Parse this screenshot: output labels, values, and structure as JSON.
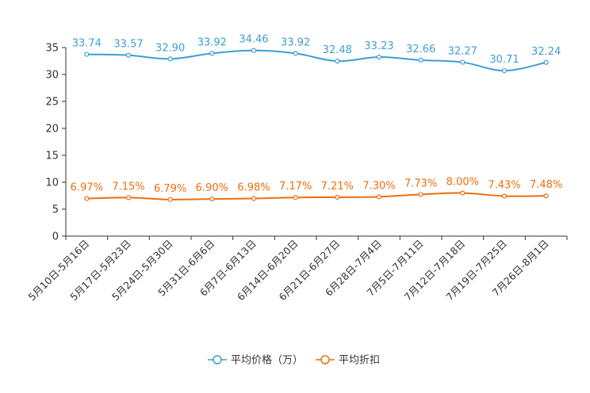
{
  "chart_data": {
    "type": "line",
    "title": "",
    "xlabel": "",
    "ylabel": "",
    "ylim": [
      0,
      35
    ],
    "yticks": [
      0,
      5,
      10,
      15,
      20,
      25,
      30,
      35
    ],
    "grid": false,
    "legend_position": "bottom-center",
    "categories": [
      "5月10日-5月16日",
      "5月17日-5月23日",
      "5月24日-5月30日",
      "5月31日-6月6日",
      "6月7日-6月13日",
      "6月14日-6月20日",
      "6月21日-6月27日",
      "6月28日-7月4日",
      "7月5日-7月11日",
      "7月12日-7月18日",
      "7月19日-7月25日",
      "7月26日-8月1日"
    ],
    "series": [
      {
        "name": "平均价格（万）",
        "color": "#3d9fd2",
        "values": [
          33.74,
          33.57,
          32.9,
          33.92,
          34.46,
          33.92,
          32.48,
          33.23,
          32.66,
          32.27,
          30.71,
          32.24
        ],
        "labels": [
          "33.74",
          "33.57",
          "32.90",
          "33.92",
          "34.46",
          "33.92",
          "32.48",
          "33.23",
          "32.66",
          "32.27",
          "30.71",
          "32.24"
        ]
      },
      {
        "name": "平均折扣",
        "color": "#ee6e0f",
        "values": [
          6.97,
          7.15,
          6.79,
          6.9,
          6.98,
          7.17,
          7.21,
          7.3,
          7.73,
          8.0,
          7.43,
          7.48
        ],
        "labels": [
          "6.97%",
          "7.15%",
          "6.79%",
          "6.90%",
          "6.98%",
          "7.17%",
          "7.21%",
          "7.30%",
          "7.73%",
          "8.00%",
          "7.43%",
          "7.48%"
        ]
      }
    ]
  }
}
